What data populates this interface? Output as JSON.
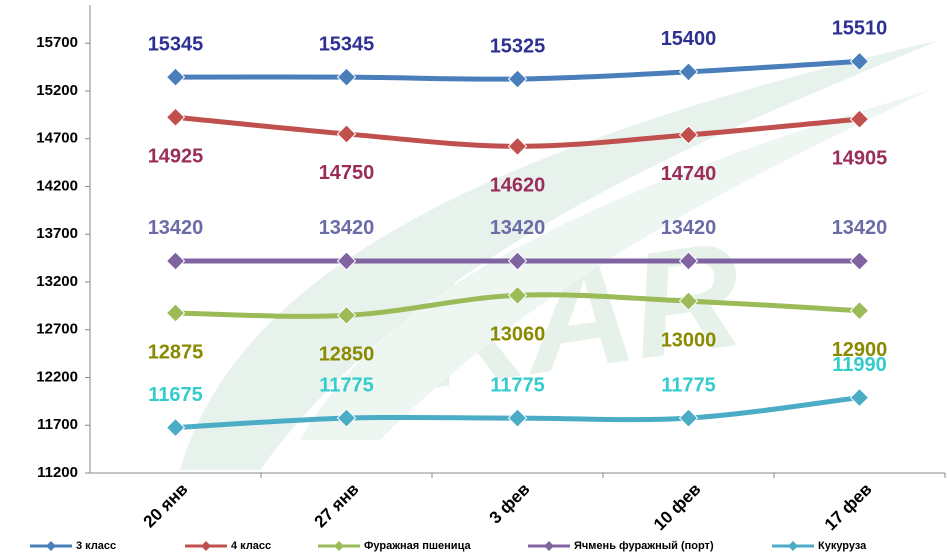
{
  "chart_data": {
    "type": "line",
    "watermark": "IKAR",
    "categories": [
      "20 янв",
      "27 янв",
      "3 фев",
      "10 фев",
      "17 фев"
    ],
    "series": [
      {
        "name": "3 класс",
        "color": "#4a7ebb",
        "label_color": "#2e3192",
        "label_position": "above",
        "values": [
          15345,
          15345,
          15325,
          15400,
          15510
        ]
      },
      {
        "name": "4 класс",
        "color": "#c0504d",
        "label_color": "#9b2d5a",
        "label_position": "below",
        "values": [
          14925,
          14750,
          14620,
          14740,
          14905
        ]
      },
      {
        "name": "Фуражная пшеница",
        "color": "#9bbb59",
        "label_color": "#8a8a00",
        "label_position": "below",
        "values": [
          12875,
          12850,
          13060,
          13000,
          12900
        ]
      },
      {
        "name": "Ячмень фуражный (порт)",
        "color": "#8064a2",
        "label_color": "#6b6ba8",
        "label_position": "above",
        "values": [
          13420,
          13420,
          13420,
          13420,
          13420
        ]
      },
      {
        "name": "Кукуруза",
        "color": "#4bacc6",
        "label_color": "#33cccc",
        "label_position": "above",
        "values": [
          11675,
          11775,
          11775,
          11775,
          11990
        ]
      }
    ],
    "ylim": [
      11200,
      16100
    ],
    "yticks": [
      11200,
      11700,
      12200,
      12700,
      13200,
      13700,
      14200,
      14700,
      15200,
      15700
    ],
    "legend": "bottom"
  }
}
